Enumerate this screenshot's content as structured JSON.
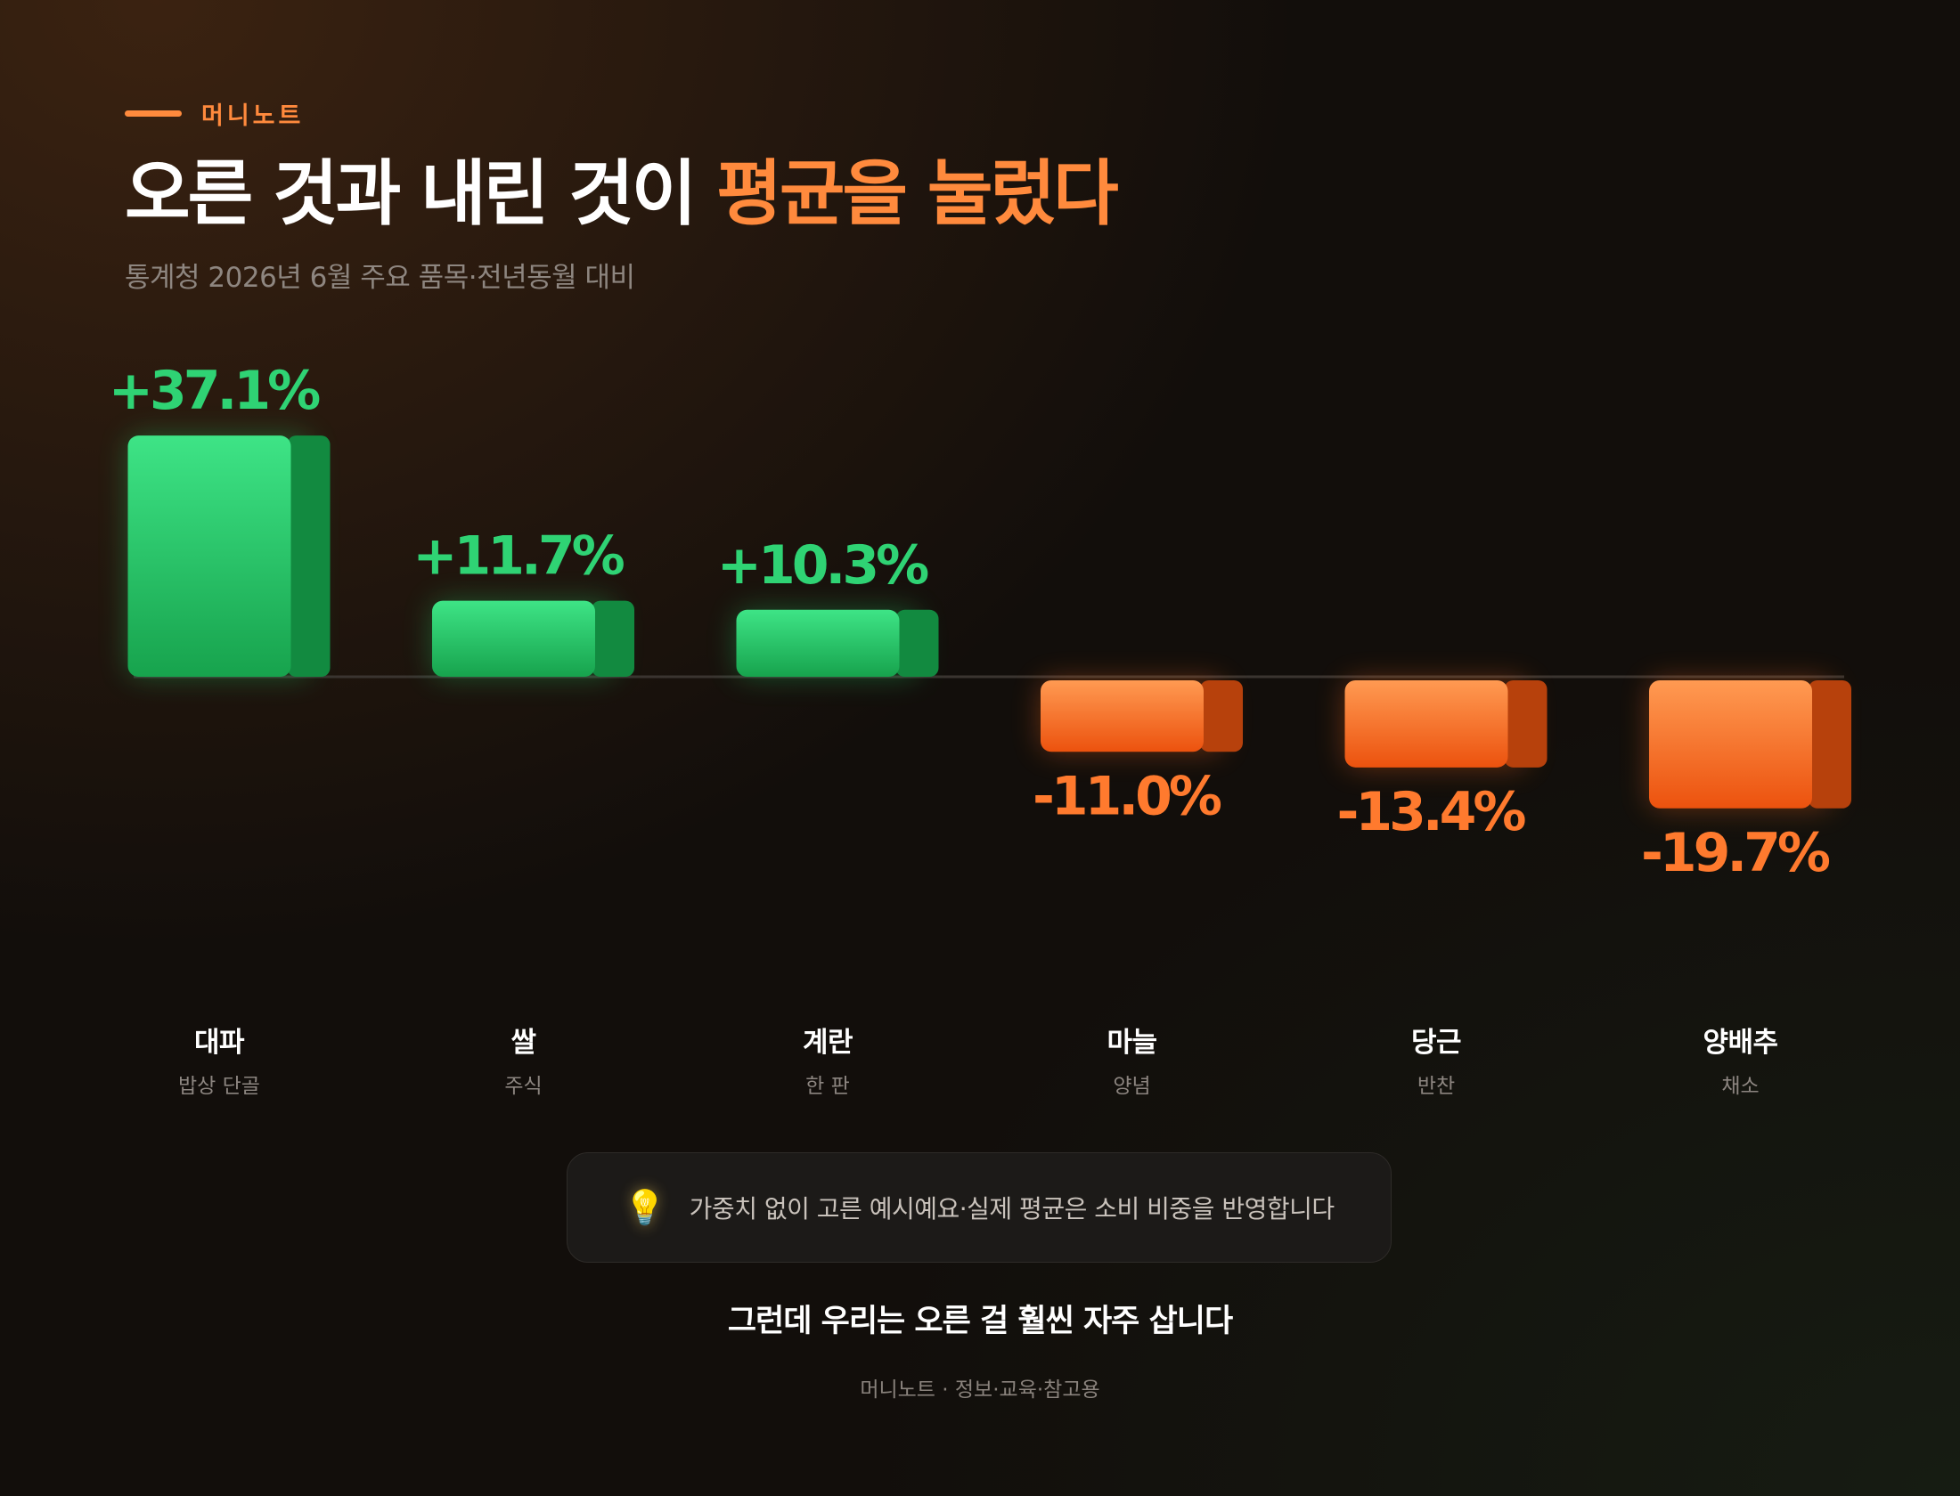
{
  "brand": "머니노트",
  "title": {
    "main": "오른 것과 내린 것이",
    "highlight": "평균을 눌렀다"
  },
  "subtitle": "통계청 2026년 6월 주요 품목·전년동월 대비",
  "colors": {
    "accent": "#ff8a3d",
    "up": "#2fd374",
    "down": "#ff7a2e"
  },
  "chart_data": {
    "type": "bar",
    "categories": [
      "대파",
      "쌀",
      "계란",
      "마늘",
      "당근",
      "양배추"
    ],
    "category_subtitles": [
      "밥상 단골",
      "주식",
      "한 판",
      "양념",
      "반찬",
      "채소"
    ],
    "values": [
      37.1,
      11.7,
      10.3,
      -11.0,
      -13.4,
      -19.7
    ],
    "value_labels": [
      "+37.1%",
      "+11.7%",
      "+10.3%",
      "-11.0%",
      "-13.4%",
      "-19.7%"
    ],
    "title": "오른 것과 내린 것이 평균을 눌렀다",
    "xlabel": "",
    "ylabel": "",
    "grid": false
  },
  "labels": [
    {
      "name": "대파",
      "sub": "밥상 단골"
    },
    {
      "name": "쌀",
      "sub": "주식"
    },
    {
      "name": "계란",
      "sub": "한 판"
    },
    {
      "name": "마늘",
      "sub": "양념"
    },
    {
      "name": "당근",
      "sub": "반찬"
    },
    {
      "name": "양배추",
      "sub": "채소"
    }
  ],
  "note": {
    "icon": "lightbulb-icon",
    "text": "가중치 없이 고른 예시예요·실제 평균은 소비 비중을 반영합니다"
  },
  "punchline": "그런데 우리는 오른 걸 훨씬 자주 삽니다",
  "footer": "머니노트 · 정보·교육·참고용"
}
